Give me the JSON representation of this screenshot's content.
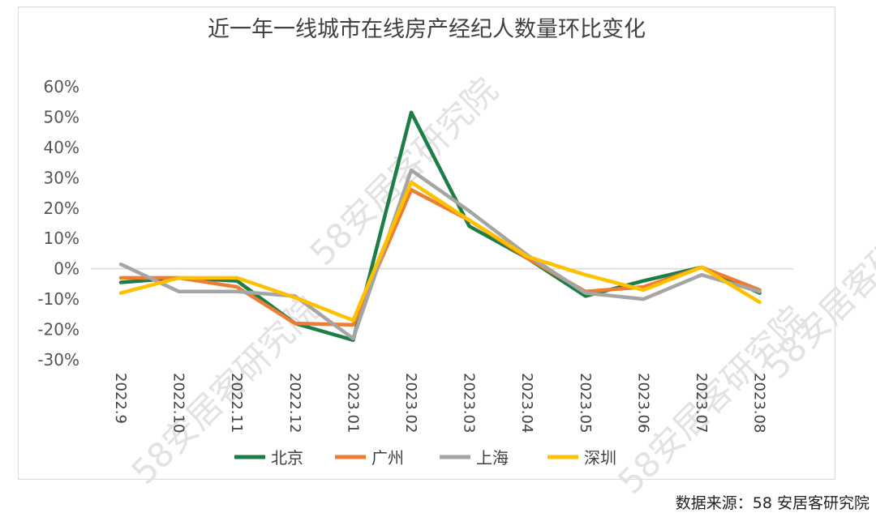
{
  "source_text": "数据来源：58 安居客研究院",
  "watermark_text": "58安居客研究院",
  "chart_data": {
    "type": "line",
    "title": "近一年一线城市在线房产经纪人数量环比变化",
    "xlabel": "",
    "ylabel": "",
    "categories": [
      "2022.9",
      "2022.10",
      "2022.11",
      "2022.12",
      "2023.01",
      "2023.02",
      "2023.03",
      "2023.04",
      "2023.05",
      "2023.06",
      "2023.07",
      "2023.08"
    ],
    "ylim": [
      -30,
      60
    ],
    "yticks": [
      60,
      50,
      40,
      30,
      20,
      10,
      0,
      -10,
      -20,
      -30
    ],
    "ytick_labels": [
      "60%",
      "50%",
      "40%",
      "30%",
      "20%",
      "10%",
      "0%",
      "-10%",
      "-20%",
      "-30%"
    ],
    "legend_position": "bottom",
    "grid": false,
    "series": [
      {
        "name": "北京",
        "color": "#1e7d46",
        "values": [
          -4.5,
          -3,
          -4,
          -18,
          -23.5,
          51.5,
          14,
          3.5,
          -9,
          -4,
          0.5,
          -8
        ]
      },
      {
        "name": "广州",
        "color": "#ed7d31",
        "values": [
          -3,
          -3,
          -6,
          -18,
          -18.5,
          26,
          16,
          3.5,
          -7.5,
          -6,
          0.5,
          -7
        ]
      },
      {
        "name": "上海",
        "color": "#a5a5a5",
        "values": [
          1.5,
          -7.5,
          -7.5,
          -9,
          -23,
          32.5,
          19,
          4.5,
          -8,
          -10,
          -2,
          -7.5
        ]
      },
      {
        "name": "深圳",
        "color": "#ffc000",
        "values": [
          -8,
          -3,
          -3,
          -9.5,
          -17,
          28.5,
          16,
          4,
          -2,
          -7,
          0.5,
          -11
        ]
      }
    ]
  }
}
